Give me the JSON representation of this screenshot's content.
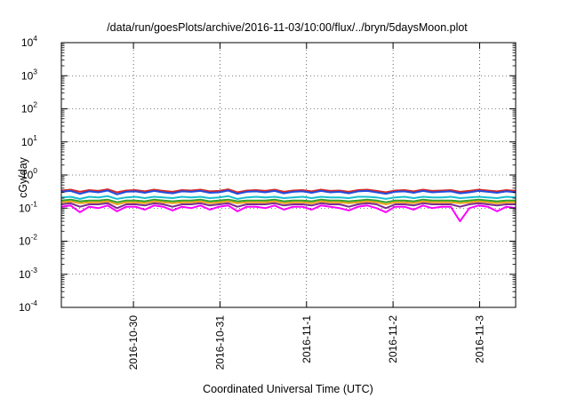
{
  "chart_data": {
    "type": "line",
    "title": "/data/run/goesPlots/archive/2016-11-03/10:00/flux/../bryn/5daysMoon.plot",
    "xlabel": "Coordinated Universal Time (UTC)",
    "ylabel": "cGy/day",
    "y_scale": "log",
    "ylim": [
      0.0001,
      10000
    ],
    "y_ticks": [
      {
        "base": "10",
        "exp": "4"
      },
      {
        "base": "10",
        "exp": "3"
      },
      {
        "base": "10",
        "exp": "2"
      },
      {
        "base": "10",
        "exp": "1"
      },
      {
        "base": "10",
        "exp": "0"
      },
      {
        "base": "10",
        "exp": "-1"
      },
      {
        "base": "10",
        "exp": "-2"
      },
      {
        "base": "10",
        "exp": "-3"
      },
      {
        "base": "10",
        "exp": "-4"
      }
    ],
    "xlim": [
      "2016-10-29T04:00",
      "2016-11-03T10:00"
    ],
    "x_ticks": [
      "2016-10-30",
      "2016-10-31",
      "2016-11-1",
      "2016-11-2",
      "2016-11-3"
    ],
    "grid": true,
    "legend": "none",
    "series": [
      {
        "color": "#d62728",
        "level": 0.33,
        "values": [
          0.34,
          0.36,
          0.31,
          0.35,
          0.33,
          0.37,
          0.3,
          0.34,
          0.35,
          0.32,
          0.36,
          0.33,
          0.31,
          0.35,
          0.34,
          0.36,
          0.32,
          0.33,
          0.37,
          0.3,
          0.34,
          0.35,
          0.33,
          0.36,
          0.31,
          0.34,
          0.35,
          0.32,
          0.36,
          0.33,
          0.34,
          0.31,
          0.35,
          0.36,
          0.33,
          0.3,
          0.34,
          0.35,
          0.32,
          0.36,
          0.33,
          0.34,
          0.35,
          0.31,
          0.33,
          0.36,
          0.34,
          0.32,
          0.35,
          0.33
        ]
      },
      {
        "color": "#1f4fe0",
        "level": 0.3,
        "values": [
          0.31,
          0.33,
          0.27,
          0.32,
          0.3,
          0.34,
          0.26,
          0.31,
          0.32,
          0.29,
          0.33,
          0.3,
          0.28,
          0.32,
          0.31,
          0.33,
          0.29,
          0.3,
          0.34,
          0.27,
          0.31,
          0.32,
          0.3,
          0.33,
          0.28,
          0.31,
          0.32,
          0.29,
          0.33,
          0.3,
          0.31,
          0.28,
          0.32,
          0.33,
          0.3,
          0.27,
          0.31,
          0.32,
          0.29,
          0.33,
          0.3,
          0.31,
          0.32,
          0.28,
          0.3,
          0.33,
          0.31,
          0.29,
          0.32,
          0.3
        ]
      },
      {
        "color": "#17becf",
        "level": 0.21,
        "values": [
          0.21,
          0.22,
          0.19,
          0.22,
          0.21,
          0.23,
          0.19,
          0.21,
          0.22,
          0.2,
          0.22,
          0.21,
          0.2,
          0.22,
          0.21,
          0.22,
          0.2,
          0.21,
          0.23,
          0.19,
          0.21,
          0.22,
          0.21,
          0.22,
          0.2,
          0.21,
          0.22,
          0.2,
          0.22,
          0.21,
          0.21,
          0.2,
          0.22,
          0.22,
          0.21,
          0.19,
          0.21,
          0.22,
          0.2,
          0.22,
          0.21,
          0.21,
          0.22,
          0.2,
          0.21,
          0.22,
          0.21,
          0.2,
          0.22,
          0.21
        ]
      },
      {
        "color": "#2ca02c",
        "level": 0.17,
        "values": [
          0.17,
          0.18,
          0.16,
          0.17,
          0.17,
          0.18,
          0.15,
          0.17,
          0.17,
          0.16,
          0.18,
          0.17,
          0.16,
          0.17,
          0.17,
          0.18,
          0.16,
          0.17,
          0.18,
          0.16,
          0.17,
          0.17,
          0.17,
          0.18,
          0.16,
          0.17,
          0.17,
          0.16,
          0.18,
          0.17,
          0.17,
          0.16,
          0.17,
          0.18,
          0.17,
          0.15,
          0.17,
          0.17,
          0.16,
          0.18,
          0.17,
          0.17,
          0.17,
          0.16,
          0.17,
          0.18,
          0.17,
          0.16,
          0.17,
          0.17
        ]
      },
      {
        "color": "#e8a317",
        "level": 0.15,
        "values": [
          0.15,
          0.16,
          0.14,
          0.15,
          0.15,
          0.16,
          0.13,
          0.15,
          0.15,
          0.14,
          0.16,
          0.15,
          0.14,
          0.15,
          0.15,
          0.16,
          0.14,
          0.15,
          0.16,
          0.14,
          0.15,
          0.15,
          0.15,
          0.16,
          0.14,
          0.15,
          0.15,
          0.14,
          0.16,
          0.15,
          0.15,
          0.14,
          0.15,
          0.16,
          0.15,
          0.13,
          0.15,
          0.15,
          0.14,
          0.16,
          0.15,
          0.15,
          0.15,
          0.14,
          0.15,
          0.16,
          0.15,
          0.14,
          0.15,
          0.15
        ]
      },
      {
        "color": "#7b2d8e",
        "level": 0.13,
        "values": [
          0.13,
          0.14,
          0.11,
          0.13,
          0.13,
          0.14,
          0.1,
          0.13,
          0.13,
          0.12,
          0.14,
          0.13,
          0.11,
          0.13,
          0.13,
          0.14,
          0.12,
          0.13,
          0.14,
          0.11,
          0.13,
          0.13,
          0.13,
          0.14,
          0.12,
          0.13,
          0.13,
          0.12,
          0.14,
          0.13,
          0.13,
          0.11,
          0.13,
          0.14,
          0.13,
          0.1,
          0.13,
          0.13,
          0.12,
          0.14,
          0.13,
          0.13,
          0.13,
          0.11,
          0.13,
          0.14,
          0.13,
          0.12,
          0.13,
          0.13
        ]
      },
      {
        "color": "#ff00ff",
        "level": 0.11,
        "values": [
          0.11,
          0.12,
          0.075,
          0.11,
          0.1,
          0.12,
          0.08,
          0.11,
          0.11,
          0.09,
          0.12,
          0.11,
          0.085,
          0.11,
          0.1,
          0.12,
          0.09,
          0.11,
          0.12,
          0.08,
          0.11,
          0.11,
          0.1,
          0.12,
          0.09,
          0.11,
          0.11,
          0.09,
          0.12,
          0.11,
          0.1,
          0.085,
          0.11,
          0.12,
          0.1,
          0.075,
          0.11,
          0.11,
          0.09,
          0.12,
          0.1,
          0.11,
          0.11,
          0.04,
          0.1,
          0.12,
          0.11,
          0.08,
          0.11,
          0.1
        ]
      }
    ]
  }
}
